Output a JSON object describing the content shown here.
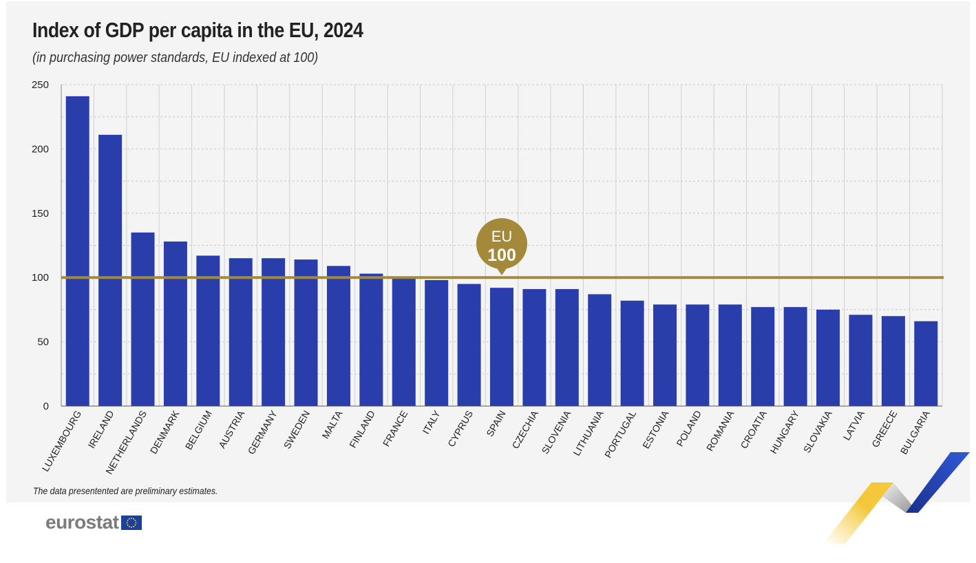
{
  "title": "Index of GDP per capita in the EU, 2024",
  "subtitle": "(in purchasing power standards, EU indexed at 100)",
  "note": "The data presentented are preliminary estimates.",
  "brand": {
    "logo_text": "eurostat"
  },
  "colors": {
    "bar": "#2a3eab",
    "reference_line": "#a4893a",
    "grid": "#c8c8c8",
    "background": "#f4f4f4"
  },
  "chart_data": {
    "type": "bar",
    "title": "Index of GDP per capita in the EU, 2024",
    "subtitle": "(in purchasing power standards, EU indexed at 100)",
    "xlabel": "",
    "ylabel": "",
    "ylim": [
      0,
      250
    ],
    "yticks": [
      0,
      50,
      100,
      150,
      200,
      250
    ],
    "grid": true,
    "categories": [
      "LUXEMBOURG",
      "IRELAND",
      "NETHERLANDS",
      "DENMARK",
      "BELGIUM",
      "AUSTRIA",
      "GERMANY",
      "SWEDEN",
      "MALTA",
      "FINLAND",
      "FRANCE",
      "ITALY",
      "CYPRUS",
      "SPAIN",
      "CZECHIA",
      "SLOVENIA",
      "LITHUANIA",
      "PORTUGAL",
      "ESTONIA",
      "POLAND",
      "ROMANIA",
      "CROATIA",
      "HUNGARY",
      "SLOVAKIA",
      "LATVIA",
      "GREECE",
      "BULGARIA"
    ],
    "values": [
      241,
      211,
      135,
      128,
      117,
      115,
      115,
      114,
      109,
      103,
      100,
      98,
      95,
      92,
      91,
      91,
      87,
      82,
      79,
      79,
      79,
      77,
      77,
      75,
      71,
      70,
      66
    ],
    "reference_line": {
      "value": 100,
      "label_top": "EU",
      "label_bottom": "100"
    }
  }
}
